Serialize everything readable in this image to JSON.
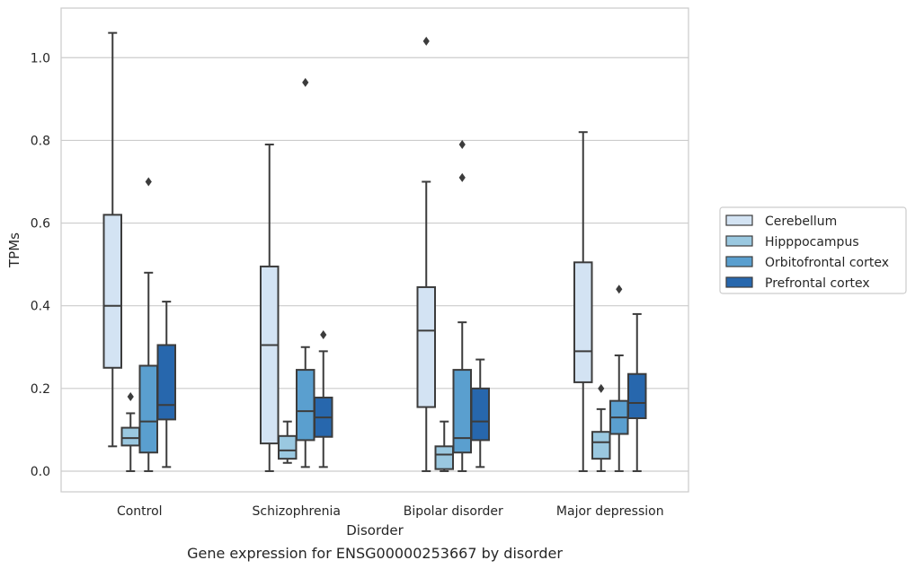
{
  "chart_data": {
    "type": "boxplot",
    "title": "",
    "caption": "Gene expression for ENSG00000253667 by disorder",
    "xlabel": "Disorder",
    "ylabel": "TPMs",
    "ylim": [
      -0.05,
      1.12
    ],
    "yticks": [
      "0.0",
      "0.2",
      "0.4",
      "0.6",
      "0.8",
      "1.0"
    ],
    "ytick_values": [
      0.0,
      0.2,
      0.4,
      0.6,
      0.8,
      1.0
    ],
    "grid": "horizontal",
    "legend_position": "right",
    "categories": [
      "Control",
      "Schizophrenia",
      "Bipolar disorder",
      "Major depression"
    ],
    "series": [
      {
        "name": "Cerebellum",
        "color": "#d3e3f3",
        "boxes": [
          {
            "whislo": 0.06,
            "q1": 0.25,
            "med": 0.4,
            "q3": 0.62,
            "whishi": 1.06,
            "fliers": []
          },
          {
            "whislo": 0.0,
            "q1": 0.067,
            "med": 0.305,
            "q3": 0.495,
            "whishi": 0.79,
            "fliers": []
          },
          {
            "whislo": 0.0,
            "q1": 0.155,
            "med": 0.34,
            "q3": 0.445,
            "whishi": 0.7,
            "fliers": [
              1.04
            ]
          },
          {
            "whislo": 0.0,
            "q1": 0.215,
            "med": 0.29,
            "q3": 0.505,
            "whishi": 0.82,
            "fliers": []
          }
        ]
      },
      {
        "name": "Hipppocampus",
        "color": "#9ac8e0",
        "boxes": [
          {
            "whislo": 0.0,
            "q1": 0.062,
            "med": 0.08,
            "q3": 0.105,
            "whishi": 0.14,
            "fliers": [
              0.18
            ]
          },
          {
            "whislo": 0.02,
            "q1": 0.03,
            "med": 0.05,
            "q3": 0.085,
            "whishi": 0.12,
            "fliers": []
          },
          {
            "whislo": 0.0,
            "q1": 0.005,
            "med": 0.04,
            "q3": 0.06,
            "whishi": 0.12,
            "fliers": []
          },
          {
            "whislo": 0.0,
            "q1": 0.03,
            "med": 0.07,
            "q3": 0.095,
            "whishi": 0.15,
            "fliers": [
              0.2
            ]
          }
        ]
      },
      {
        "name": "Orbitofrontal cortex",
        "color": "#5a9fcf",
        "boxes": [
          {
            "whislo": 0.0,
            "q1": 0.045,
            "med": 0.12,
            "q3": 0.255,
            "whishi": 0.48,
            "fliers": [
              0.7
            ]
          },
          {
            "whislo": 0.01,
            "q1": 0.075,
            "med": 0.145,
            "q3": 0.245,
            "whishi": 0.3,
            "fliers": [
              0.94
            ]
          },
          {
            "whislo": 0.0,
            "q1": 0.045,
            "med": 0.08,
            "q3": 0.245,
            "whishi": 0.36,
            "fliers": [
              0.71,
              0.79
            ]
          },
          {
            "whislo": 0.0,
            "q1": 0.09,
            "med": 0.13,
            "q3": 0.17,
            "whishi": 0.28,
            "fliers": [
              0.44
            ]
          }
        ]
      },
      {
        "name": "Prefrontal cortex",
        "color": "#2767ad",
        "boxes": [
          {
            "whislo": 0.01,
            "q1": 0.125,
            "med": 0.16,
            "q3": 0.305,
            "whishi": 0.41,
            "fliers": []
          },
          {
            "whislo": 0.01,
            "q1": 0.083,
            "med": 0.13,
            "q3": 0.178,
            "whishi": 0.29,
            "fliers": [
              0.33
            ]
          },
          {
            "whislo": 0.01,
            "q1": 0.075,
            "med": 0.12,
            "q3": 0.2,
            "whishi": 0.27,
            "fliers": []
          },
          {
            "whislo": 0.0,
            "q1": 0.128,
            "med": 0.165,
            "q3": 0.235,
            "whishi": 0.38,
            "fliers": []
          }
        ]
      }
    ]
  }
}
